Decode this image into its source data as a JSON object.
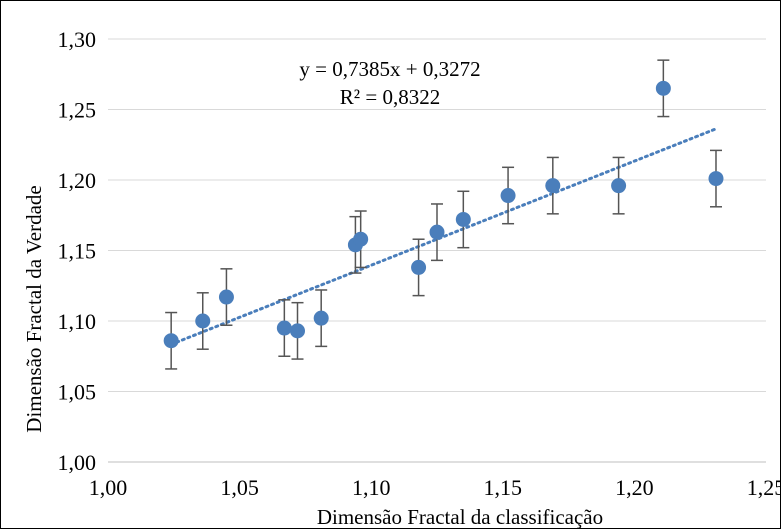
{
  "chart_data": {
    "type": "scatter",
    "title": "",
    "xlabel": "Dimensão Fractal da classificação",
    "ylabel": "Dimensão Fractal da Verdade",
    "xlim": [
      1.0,
      1.25
    ],
    "ylim": [
      1.0,
      1.3
    ],
    "xticks": [
      1.0,
      1.05,
      1.1,
      1.15,
      1.2,
      1.25
    ],
    "yticks": [
      1.0,
      1.05,
      1.1,
      1.15,
      1.2,
      1.25,
      1.3
    ],
    "xtick_labels": [
      "1,00",
      "1,05",
      "1,10",
      "1,15",
      "1,20",
      "1,25"
    ],
    "ytick_labels": [
      "1,00",
      "1,05",
      "1,10",
      "1,15",
      "1,20",
      "1,25",
      "1,30"
    ],
    "grid": "horizontal",
    "error_bar": 0.02,
    "marker_color": "#4a7ebb",
    "trendline_color": "#4a7ebb",
    "error_bar_color": "#555555",
    "trendline": {
      "type": "linear",
      "slope": 0.7385,
      "intercept": 0.3272,
      "x_range": [
        1.024,
        1.231
      ],
      "equation": "y = 0,7385x + 0,3272",
      "r_squared": "R² = 0,8322"
    },
    "points": [
      {
        "x": 1.024,
        "y": 1.086
      },
      {
        "x": 1.036,
        "y": 1.1
      },
      {
        "x": 1.045,
        "y": 1.117
      },
      {
        "x": 1.067,
        "y": 1.095
      },
      {
        "x": 1.072,
        "y": 1.093
      },
      {
        "x": 1.081,
        "y": 1.102
      },
      {
        "x": 1.094,
        "y": 1.154
      },
      {
        "x": 1.096,
        "y": 1.158
      },
      {
        "x": 1.118,
        "y": 1.138
      },
      {
        "x": 1.125,
        "y": 1.163
      },
      {
        "x": 1.135,
        "y": 1.172
      },
      {
        "x": 1.152,
        "y": 1.189
      },
      {
        "x": 1.169,
        "y": 1.196
      },
      {
        "x": 1.194,
        "y": 1.196
      },
      {
        "x": 1.211,
        "y": 1.265
      },
      {
        "x": 1.231,
        "y": 1.201
      }
    ]
  }
}
